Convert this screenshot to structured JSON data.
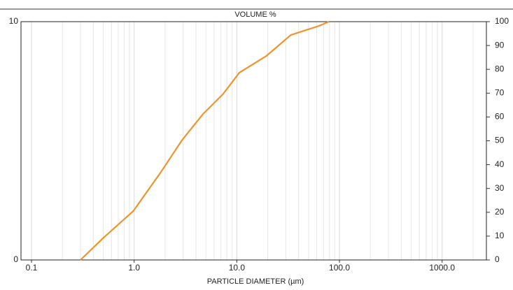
{
  "chart_data": {
    "type": "line",
    "title": "VOLUME %",
    "xlabel": "PARTICLE DIAMETER (µm)",
    "x": [
      0.3,
      0.505,
      0.98,
      1.83,
      2.94,
      4.7,
      7.3,
      10.6,
      19.4,
      33.6,
      63,
      79
    ],
    "series": [
      {
        "name": "VOLUME %",
        "color": "#f0932b",
        "axis": "y2",
        "values": [
          0,
          9.4,
          20.5,
          37,
          50.4,
          61.3,
          69.5,
          78.6,
          85.6,
          94.4,
          98.2,
          100
        ]
      }
    ],
    "xscale": "log",
    "xlim": [
      0.079,
      2700
    ],
    "xticks": [
      0.1,
      {
        "value": 1,
        "label": "1.0"
      },
      {
        "value": 10,
        "label": "10.0"
      },
      {
        "value": 100,
        "label": "100.0"
      },
      {
        "value": 1000,
        "label": "1000.0"
      }
    ],
    "xgrid_minor": [
      0.2,
      0.3,
      0.4,
      0.5,
      0.6,
      0.7,
      0.8,
      0.9,
      2,
      3,
      4,
      5,
      6,
      7,
      8,
      9,
      20,
      30,
      40,
      50,
      60,
      70,
      80,
      90,
      200,
      300,
      400,
      500,
      600,
      700,
      800,
      900,
      2000
    ],
    "ylim": [
      0,
      10
    ],
    "yticks": [
      0,
      10
    ],
    "y2lim": [
      0,
      100
    ],
    "y2ticks": [
      0,
      10,
      20,
      30,
      40,
      50,
      60,
      70,
      80,
      90,
      100
    ],
    "grid": true
  }
}
